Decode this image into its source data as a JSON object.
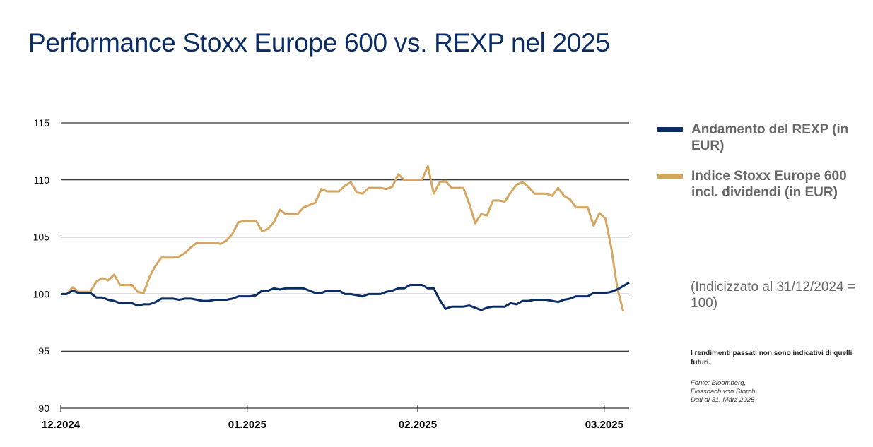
{
  "chart_data": {
    "type": "line",
    "title": "Performance Stoxx Europe 600 vs. REXP nel 2025",
    "xlabel": "",
    "ylabel": "",
    "ylim": [
      90,
      115
    ],
    "yticks": [
      90,
      95,
      100,
      105,
      110,
      115
    ],
    "xlim": [
      0,
      96
    ],
    "xticks": [
      {
        "x": 0,
        "label": "12.2024"
      },
      {
        "x": 31.5,
        "label": "01.2025"
      },
      {
        "x": 60.3,
        "label": "02.2025"
      },
      {
        "x": 91.8,
        "label": "03.2025"
      }
    ],
    "grid": true,
    "series": [
      {
        "name": "Andamento del REXP (in EUR)",
        "color": "#0b2d66",
        "points": [
          [
            0,
            100
          ],
          [
            1,
            100
          ],
          [
            2,
            100.3
          ],
          [
            3,
            100.1
          ],
          [
            4,
            100.1
          ],
          [
            5,
            100.1
          ],
          [
            6,
            99.7
          ],
          [
            7,
            99.7
          ],
          [
            8,
            99.5
          ],
          [
            9,
            99.4
          ],
          [
            10,
            99.2
          ],
          [
            11,
            99.2
          ],
          [
            12,
            99.2
          ],
          [
            13,
            99
          ],
          [
            14,
            99.1
          ],
          [
            15,
            99.1
          ],
          [
            16,
            99.3
          ],
          [
            17,
            99.6
          ],
          [
            18,
            99.6
          ],
          [
            19,
            99.6
          ],
          [
            20,
            99.5
          ],
          [
            21,
            99.6
          ],
          [
            22,
            99.6
          ],
          [
            23,
            99.5
          ],
          [
            24,
            99.4
          ],
          [
            25,
            99.4
          ],
          [
            26,
            99.5
          ],
          [
            27,
            99.5
          ],
          [
            28,
            99.5
          ],
          [
            29,
            99.6
          ],
          [
            30,
            99.8
          ],
          [
            31,
            99.8
          ],
          [
            32,
            99.8
          ],
          [
            33,
            99.9
          ],
          [
            34,
            100.3
          ],
          [
            35,
            100.3
          ],
          [
            36,
            100.5
          ],
          [
            37,
            100.4
          ],
          [
            38,
            100.5
          ],
          [
            39,
            100.5
          ],
          [
            40,
            100.5
          ],
          [
            41,
            100.5
          ],
          [
            42,
            100.3
          ],
          [
            43,
            100.1
          ],
          [
            44,
            100.1
          ],
          [
            45,
            100.3
          ],
          [
            46,
            100.3
          ],
          [
            47,
            100.3
          ],
          [
            48,
            100
          ],
          [
            49,
            100
          ],
          [
            50,
            99.9
          ],
          [
            51,
            99.8
          ],
          [
            52,
            100
          ],
          [
            53,
            100
          ],
          [
            54,
            100
          ],
          [
            55,
            100.2
          ],
          [
            56,
            100.3
          ],
          [
            57,
            100.5
          ],
          [
            58,
            100.5
          ],
          [
            59,
            100.8
          ],
          [
            60,
            100.8
          ],
          [
            61,
            100.8
          ],
          [
            62,
            100.5
          ],
          [
            63,
            100.5
          ],
          [
            64,
            99.5
          ],
          [
            65,
            98.7
          ],
          [
            66,
            98.9
          ],
          [
            67,
            98.9
          ],
          [
            68,
            98.9
          ],
          [
            69,
            99
          ],
          [
            70,
            98.8
          ],
          [
            71,
            98.6
          ],
          [
            72,
            98.8
          ],
          [
            73,
            98.9
          ],
          [
            74,
            98.9
          ],
          [
            75,
            98.9
          ],
          [
            76,
            99.2
          ],
          [
            77,
            99.1
          ],
          [
            78,
            99.4
          ],
          [
            79,
            99.4
          ],
          [
            80,
            99.5
          ],
          [
            81,
            99.5
          ],
          [
            82,
            99.5
          ],
          [
            83,
            99.4
          ],
          [
            84,
            99.3
          ],
          [
            85,
            99.5
          ],
          [
            86,
            99.6
          ],
          [
            87,
            99.8
          ],
          [
            88,
            99.8
          ],
          [
            89,
            99.8
          ],
          [
            90,
            100.1
          ],
          [
            91,
            100.1
          ],
          [
            92,
            100.1
          ],
          [
            93,
            100.2
          ],
          [
            94,
            100.4
          ],
          [
            95,
            100.7
          ],
          [
            96,
            101
          ]
        ]
      },
      {
        "name": "Indice Stoxx Europe 600 incl. dividendi (in EUR)",
        "color": "#d5a662",
        "points": [
          [
            0,
            100
          ],
          [
            1,
            100
          ],
          [
            2,
            100.6
          ],
          [
            3,
            100.2
          ],
          [
            4,
            100.2
          ],
          [
            5,
            100.2
          ],
          [
            6,
            101.1
          ],
          [
            7,
            101.4
          ],
          [
            8,
            101.2
          ],
          [
            9,
            101.7
          ],
          [
            10,
            100.8
          ],
          [
            11,
            100.8
          ],
          [
            12,
            100.8
          ],
          [
            13,
            100.2
          ],
          [
            14,
            100.1
          ],
          [
            15,
            101.5
          ],
          [
            16,
            102.5
          ],
          [
            17,
            103.2
          ],
          [
            18,
            103.2
          ],
          [
            19,
            103.2
          ],
          [
            20,
            103.3
          ],
          [
            21,
            103.6
          ],
          [
            22,
            104.1
          ],
          [
            23,
            104.5
          ],
          [
            24,
            104.5
          ],
          [
            25,
            104.5
          ],
          [
            26,
            104.5
          ],
          [
            27,
            104.4
          ],
          [
            28,
            104.7
          ],
          [
            29,
            105.3
          ],
          [
            30,
            106.3
          ],
          [
            31,
            106.4
          ],
          [
            32,
            106.4
          ],
          [
            33,
            106.4
          ],
          [
            34,
            105.5
          ],
          [
            35,
            105.7
          ],
          [
            36,
            106.3
          ],
          [
            37,
            107.4
          ],
          [
            38,
            107
          ],
          [
            39,
            107
          ],
          [
            40,
            107
          ],
          [
            41,
            107.6
          ],
          [
            42,
            107.8
          ],
          [
            43,
            108
          ],
          [
            44,
            109.2
          ],
          [
            45,
            109
          ],
          [
            46,
            109
          ],
          [
            47,
            109
          ],
          [
            48,
            109.5
          ],
          [
            49,
            109.8
          ],
          [
            50,
            108.9
          ],
          [
            51,
            108.8
          ],
          [
            52,
            109.3
          ],
          [
            53,
            109.3
          ],
          [
            54,
            109.3
          ],
          [
            55,
            109.2
          ],
          [
            56,
            109.4
          ],
          [
            57,
            110.5
          ],
          [
            58,
            110
          ],
          [
            59,
            110
          ],
          [
            60,
            110
          ],
          [
            61,
            110
          ],
          [
            62,
            111.2
          ],
          [
            63,
            108.8
          ],
          [
            64,
            109.8
          ],
          [
            65,
            109.9
          ],
          [
            66,
            109.3
          ],
          [
            67,
            109.3
          ],
          [
            68,
            109.3
          ],
          [
            69,
            107.9
          ],
          [
            70,
            106.2
          ],
          [
            71,
            107
          ],
          [
            72,
            106.9
          ],
          [
            73,
            108.2
          ],
          [
            74,
            108.2
          ],
          [
            75,
            108.1
          ],
          [
            76,
            108.9
          ],
          [
            77,
            109.6
          ],
          [
            78,
            109.8
          ],
          [
            79,
            109.4
          ],
          [
            80,
            108.8
          ],
          [
            81,
            108.8
          ],
          [
            82,
            108.8
          ],
          [
            83,
            108.6
          ],
          [
            84,
            109.3
          ],
          [
            85,
            108.6
          ],
          [
            86,
            108.3
          ],
          [
            87,
            107.6
          ],
          [
            88,
            107.6
          ],
          [
            89,
            107.6
          ],
          [
            90,
            106
          ],
          [
            91,
            107.1
          ],
          [
            92,
            106.6
          ],
          [
            93,
            104
          ],
          [
            94,
            100.5
          ],
          [
            95,
            98.5
          ]
        ]
      }
    ]
  },
  "legend": [
    {
      "label": "Andamento del REXP (in EUR)",
      "color": "#0b2d66"
    },
    {
      "label": "Indice Stoxx Europe 600 incl. dividendi (in EUR)",
      "color": "#d5a662"
    }
  ],
  "note": "(Indicizzato al 31/12/2024 = 100)",
  "disclaimer": "I rendimenti passati non sono indicativi di quelli futuri.",
  "source": {
    "line1": "Fonte: Bloomberg,",
    "line2": "Flossbach von Storch,",
    "line3": "Dati al 31. März 2025"
  }
}
